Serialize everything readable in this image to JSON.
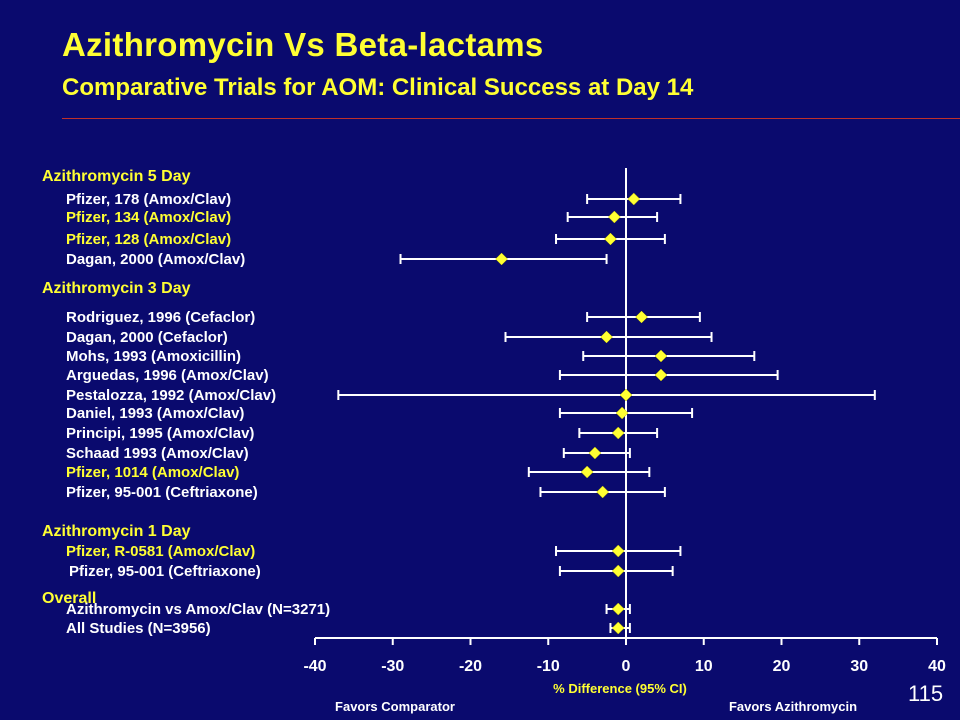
{
  "slide": {
    "title": "Azithromycin Vs Beta-lactams",
    "subtitle": "Comparative Trials for AOM: Clinical Success at Day 14",
    "page_number": "115",
    "colors": {
      "background": "#0a0a6e",
      "title": "#ffff33",
      "group_heading": "#ffff33",
      "label_white": "#ffffff",
      "label_yellow": "#ffff33",
      "marker": "#ffff33",
      "line": "#ffffff",
      "rule": "#c0302a"
    }
  },
  "chart_data": {
    "type": "forest",
    "xlabel": "% Difference (95% CI)",
    "xlim": [
      -40,
      40
    ],
    "xticks": [
      -40,
      -30,
      -20,
      -10,
      0,
      10,
      20,
      30,
      40
    ],
    "reference_line": 0,
    "favors_left": "Favors Comparator",
    "favors_right": "Favors Azithromycin",
    "groups": [
      {
        "heading": "Azithromycin 5 Day",
        "studies": [
          {
            "label": "Pfizer, 178 (Amox/Clav)",
            "estimate": 1,
            "ci": [
              -5,
              7
            ],
            "highlight": false
          },
          {
            "label": "Pfizer, 134 (Amox/Clav)",
            "estimate": -1.5,
            "ci": [
              -7.5,
              4
            ],
            "highlight": true
          },
          {
            "label": "Pfizer, 128 (Amox/Clav)",
            "estimate": -2,
            "ci": [
              -9,
              5
            ],
            "highlight": true
          },
          {
            "label": "Dagan, 2000 (Amox/Clav)",
            "estimate": -16,
            "ci": [
              -29,
              -2.5
            ],
            "highlight": false
          }
        ]
      },
      {
        "heading": "Azithromycin 3 Day",
        "studies": [
          {
            "label": "Rodriguez, 1996 (Cefaclor)",
            "estimate": 2,
            "ci": [
              -5,
              9.5
            ],
            "highlight": false
          },
          {
            "label": "Dagan, 2000 (Cefaclor)",
            "estimate": -2.5,
            "ci": [
              -15.5,
              11
            ],
            "highlight": false
          },
          {
            "label": "Mohs, 1993 (Amoxicillin)",
            "estimate": 4.5,
            "ci": [
              -5.5,
              16.5
            ],
            "highlight": false
          },
          {
            "label": "Arguedas, 1996 (Amox/Clav)",
            "estimate": 4.5,
            "ci": [
              -8.5,
              19.5
            ],
            "highlight": false
          },
          {
            "label": "Pestalozza, 1992 (Amox/Clav)",
            "estimate": 0,
            "ci": [
              -37,
              32
            ],
            "highlight": false
          },
          {
            "label": "Daniel, 1993 (Amox/Clav)",
            "estimate": -0.5,
            "ci": [
              -8.5,
              8.5
            ],
            "highlight": false
          },
          {
            "label": "Principi, 1995 (Amox/Clav)",
            "estimate": -1,
            "ci": [
              -6,
              4
            ],
            "highlight": false
          },
          {
            "label": "Schaad 1993 (Amox/Clav)",
            "estimate": -4,
            "ci": [
              -8,
              0.5
            ],
            "highlight": false
          },
          {
            "label": "Pfizer, 1014 (Amox/Clav)",
            "estimate": -5,
            "ci": [
              -12.5,
              3
            ],
            "highlight": true
          },
          {
            "label": "Pfizer, 95-001 (Ceftriaxone)",
            "estimate": -3,
            "ci": [
              -11,
              5
            ],
            "highlight": false
          }
        ]
      },
      {
        "heading": "Azithromycin 1 Day",
        "studies": [
          {
            "label": "Pfizer, R-0581 (Amox/Clav)",
            "estimate": -1,
            "ci": [
              -9,
              7
            ],
            "highlight": true
          },
          {
            "label": "Pfizer, 95-001 (Ceftriaxone)",
            "estimate": -1,
            "ci": [
              -8.5,
              6
            ],
            "highlight": false
          }
        ]
      },
      {
        "heading": "Overall",
        "studies": [
          {
            "label": "Azithromycin vs Amox/Clav (N=3271)",
            "estimate": -1,
            "ci": [
              -2.5,
              0.5
            ],
            "highlight": false
          },
          {
            "label": "All Studies (N=3956)",
            "estimate": -1,
            "ci": [
              -2,
              0.5
            ],
            "highlight": false
          }
        ]
      }
    ]
  }
}
